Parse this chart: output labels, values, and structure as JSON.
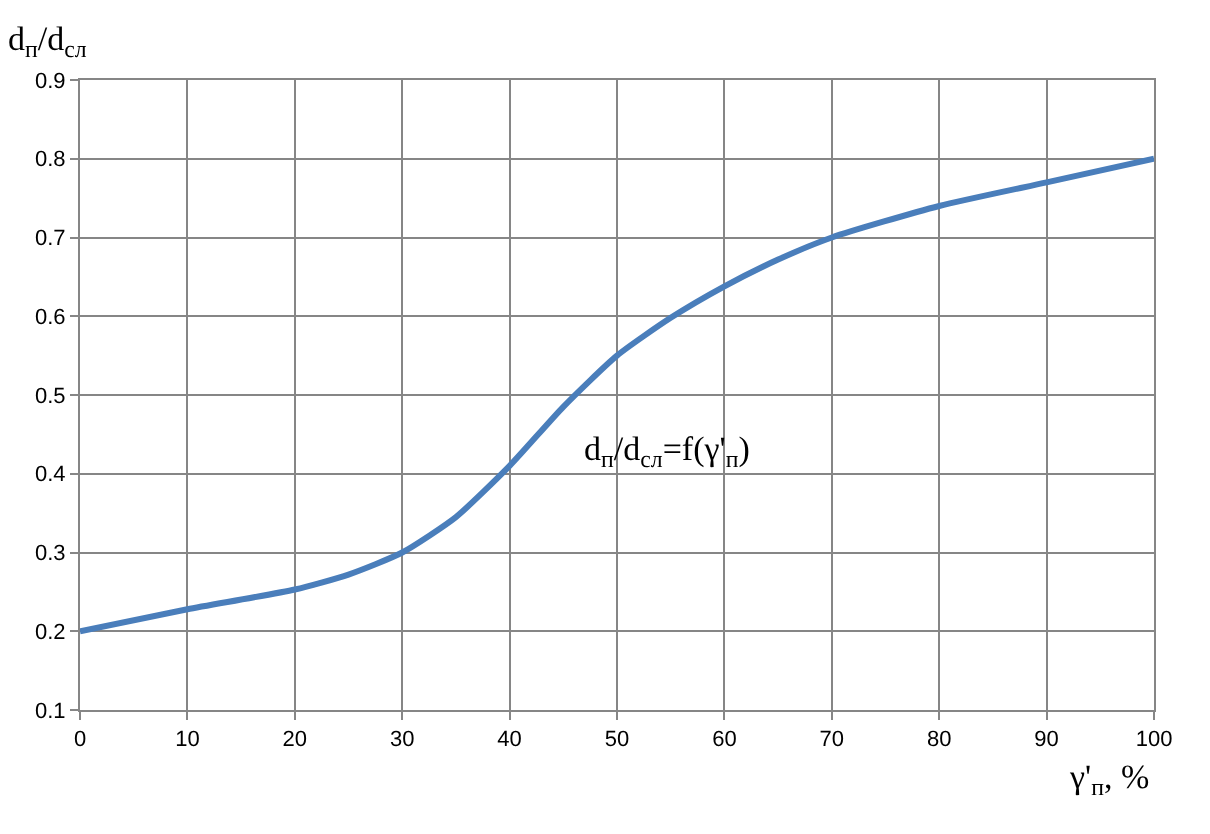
{
  "chart_data": {
    "type": "line",
    "xlabel": "γ'$_{п}$, %",
    "ylabel": "d$_{п}$/d$_{сл}$",
    "x": [
      0,
      10,
      20,
      25,
      30,
      35,
      40,
      45,
      50,
      55,
      60,
      65,
      70,
      80,
      90,
      100
    ],
    "series": [
      {
        "color": "#4a7ebb",
        "values": [
          0.2,
          0.228,
          0.253,
          0.272,
          0.3,
          0.345,
          0.41,
          0.485,
          0.55,
          0.598,
          0.638,
          0.672,
          0.7,
          0.74,
          0.77,
          0.8
        ]
      }
    ],
    "xlim": [
      0,
      100
    ],
    "xticks": [
      0,
      10,
      20,
      30,
      40,
      50,
      60,
      70,
      80,
      90,
      100
    ],
    "ylim": [
      0.1,
      0.9
    ],
    "yticks": [
      0.1,
      0.2,
      0.3,
      0.4,
      0.5,
      0.6,
      0.7,
      0.8,
      0.9
    ],
    "grid": true,
    "legend": false,
    "marker": "none",
    "line_style": "solid",
    "annotations": [
      "d$_{п}$/d$_{сл}$=f(γ'$_{п}$)"
    ]
  }
}
